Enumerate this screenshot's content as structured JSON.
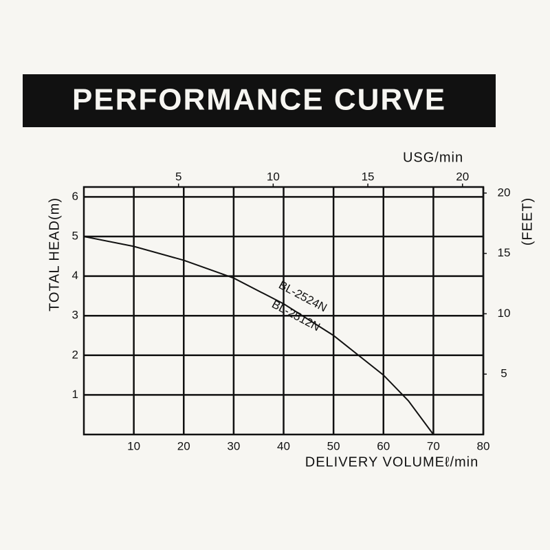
{
  "chart_data": {
    "type": "line",
    "title": "PERFORMANCE CURVE",
    "x_label": "DELIVERY VOLUMEℓ/min",
    "y_label": "TOTAL HEAD(m)",
    "x2_label": "USG/min",
    "y2_label": "(FEET)",
    "x": [
      0,
      10,
      20,
      30,
      40,
      50,
      60,
      65,
      70
    ],
    "series": [
      {
        "color": "#111111",
        "values": [
          5,
          4.75,
          4.4,
          3.95,
          3.3,
          2.5,
          1.5,
          0.85,
          0
        ]
      }
    ],
    "annotations": [
      "BL-2524N",
      "BL-2512N"
    ],
    "xlim": [
      0,
      80
    ],
    "xticks": [
      10,
      20,
      30,
      40,
      50,
      60,
      70,
      80
    ],
    "ylim": [
      0,
      6.25
    ],
    "yticks": [
      1,
      2,
      3,
      4,
      5,
      6
    ],
    "x2lim": [
      0,
      21.1
    ],
    "x2ticks": [
      5,
      10,
      15,
      20
    ],
    "y2lim": [
      0,
      20.5
    ],
    "y2ticks": [
      5,
      10,
      15,
      20
    ],
    "grid": true
  }
}
